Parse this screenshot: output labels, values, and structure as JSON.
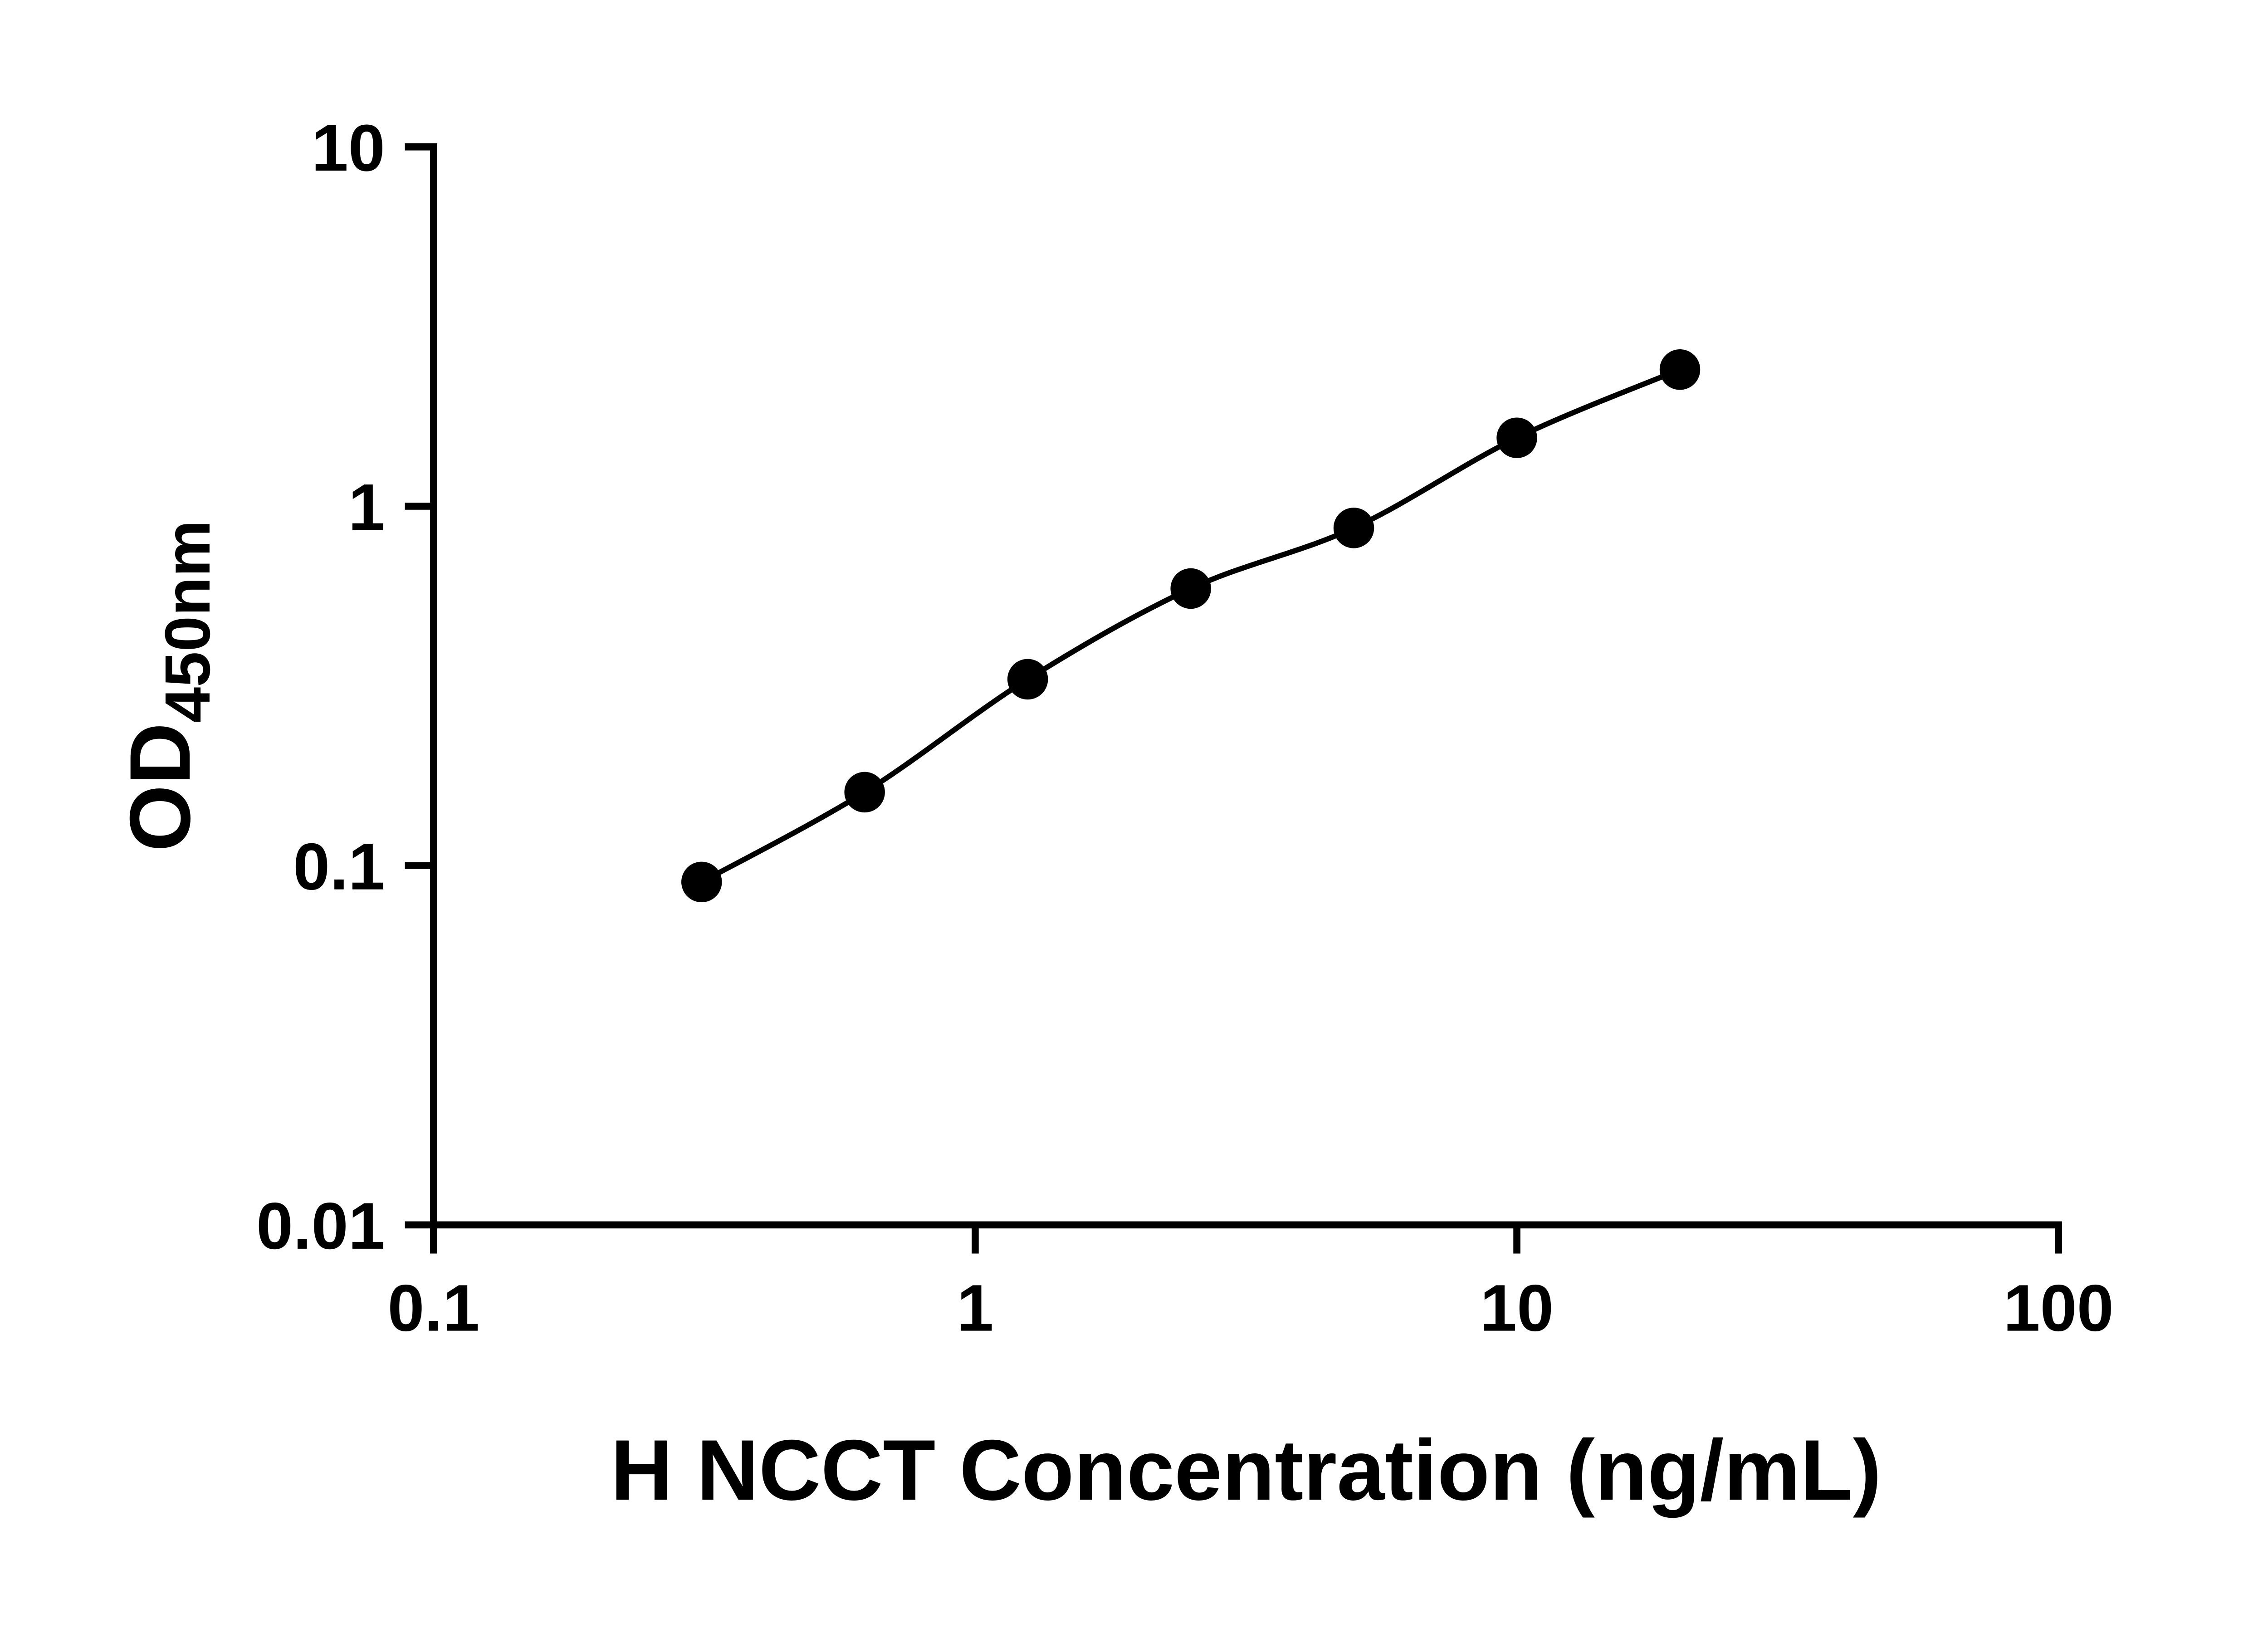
{
  "chart_data": {
    "type": "scatter",
    "curve_style": "smooth-fit-line",
    "title": "",
    "xlabel": "H NCCT Concentration (ng/mL)",
    "ylabel_base": "OD",
    "ylabel_subscript": "450nm",
    "ylabel_text": "OD450nm",
    "x_scale": "log",
    "y_scale": "log",
    "xlim": [
      0.1,
      100
    ],
    "ylim": [
      0.01,
      10
    ],
    "x_ticks": [
      0.1,
      1,
      10,
      100
    ],
    "x_tick_labels": [
      "0.1",
      "1",
      "10",
      "100"
    ],
    "y_ticks": [
      0.01,
      0.1,
      1,
      10
    ],
    "y_tick_labels": [
      "0.01",
      "0.1",
      "1",
      "10"
    ],
    "grid": false,
    "legend": null,
    "x": [
      0.3125,
      0.625,
      1.25,
      2.5,
      5,
      10,
      20
    ],
    "y": [
      0.09,
      0.16,
      0.33,
      0.59,
      0.87,
      1.55,
      2.4
    ],
    "points": [
      {
        "x": 0.3125,
        "y": 0.09
      },
      {
        "x": 0.625,
        "y": 0.16
      },
      {
        "x": 1.25,
        "y": 0.33
      },
      {
        "x": 2.5,
        "y": 0.59
      },
      {
        "x": 5,
        "y": 0.87
      },
      {
        "x": 10,
        "y": 1.55
      },
      {
        "x": 20,
        "y": 2.4
      }
    ],
    "marker_color": "#000000",
    "line_color": "#000000",
    "axis_color": "#000000",
    "background_color": "#ffffff"
  }
}
